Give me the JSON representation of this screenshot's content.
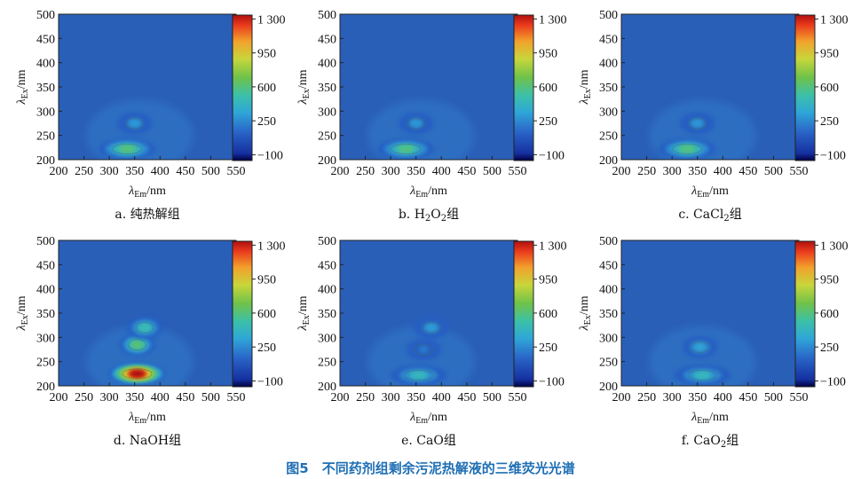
{
  "figure_title": "图5　不同药剂组剩余污泥热解液的三维荧光光谱",
  "chart_data": [
    {
      "type": "heatmap",
      "caption": "a. 纯热解组",
      "xlabel": "λEm/nm",
      "ylabel": "λEx/nm",
      "xlim": [
        200,
        550
      ],
      "ylim": [
        200,
        500
      ],
      "x_ticks": [
        200,
        250,
        300,
        350,
        400,
        450,
        500,
        550
      ],
      "y_ticks": [
        200,
        250,
        300,
        350,
        400,
        450,
        500
      ],
      "colorbar": {
        "ticks": [
          1300,
          950,
          600,
          250,
          -100
        ],
        "tick_labels": [
          "1 300",
          "950",
          "600",
          "250",
          "−100"
        ]
      },
      "peaks": [
        {
          "em": 335,
          "ex": 222,
          "intensity": 620
        },
        {
          "em": 350,
          "ex": 275,
          "intensity": 330
        }
      ]
    },
    {
      "type": "heatmap",
      "caption": "b. H2O2组",
      "xlabel": "λEm/nm",
      "ylabel": "λEx/nm",
      "xlim": [
        200,
        550
      ],
      "ylim": [
        200,
        500
      ],
      "x_ticks": [
        200,
        250,
        300,
        350,
        400,
        450,
        500,
        550
      ],
      "y_ticks": [
        200,
        250,
        300,
        350,
        400,
        450,
        500
      ],
      "colorbar": {
        "ticks": [
          1300,
          950,
          600,
          250,
          -100
        ],
        "tick_labels": [
          "1 300",
          "950",
          "600",
          "250",
          "−100"
        ]
      },
      "peaks": [
        {
          "em": 330,
          "ex": 222,
          "intensity": 600
        },
        {
          "em": 350,
          "ex": 275,
          "intensity": 320
        }
      ]
    },
    {
      "type": "heatmap",
      "caption": "c. CaCl2组",
      "xlabel": "λEm/nm",
      "ylabel": "λEx/nm",
      "xlim": [
        200,
        550
      ],
      "ylim": [
        200,
        500
      ],
      "x_ticks": [
        200,
        250,
        300,
        350,
        400,
        450,
        500,
        550
      ],
      "y_ticks": [
        200,
        250,
        300,
        350,
        400,
        450,
        500
      ],
      "colorbar": {
        "ticks": [
          1300,
          950,
          600,
          250,
          -100
        ],
        "tick_labels": [
          "1 300",
          "950",
          "600",
          "250",
          "−100"
        ]
      },
      "peaks": [
        {
          "em": 330,
          "ex": 222,
          "intensity": 610
        },
        {
          "em": 350,
          "ex": 275,
          "intensity": 320
        }
      ]
    },
    {
      "type": "heatmap",
      "caption": "d. NaOH组",
      "xlabel": "λEm/nm",
      "ylabel": "λEx/nm",
      "xlim": [
        200,
        550
      ],
      "ylim": [
        200,
        500
      ],
      "x_ticks": [
        200,
        250,
        300,
        350,
        400,
        450,
        500,
        550
      ],
      "y_ticks": [
        200,
        250,
        300,
        350,
        400,
        450,
        500
      ],
      "colorbar": {
        "ticks": [
          1300,
          950,
          600,
          250,
          -100
        ],
        "tick_labels": [
          "1 300",
          "950",
          "600",
          "250",
          "−100"
        ]
      },
      "peaks": [
        {
          "em": 355,
          "ex": 225,
          "intensity": 1300
        },
        {
          "em": 355,
          "ex": 285,
          "intensity": 640
        },
        {
          "em": 370,
          "ex": 320,
          "intensity": 520
        }
      ]
    },
    {
      "type": "heatmap",
      "caption": "e. CaO组",
      "xlabel": "λEm/nm",
      "ylabel": "λEx/nm",
      "xlim": [
        200,
        550
      ],
      "ylim": [
        200,
        500
      ],
      "x_ticks": [
        200,
        250,
        300,
        350,
        400,
        450,
        500,
        550
      ],
      "y_ticks": [
        200,
        250,
        300,
        350,
        400,
        450,
        500
      ],
      "colorbar": {
        "ticks": [
          1300,
          950,
          600,
          250,
          -100
        ],
        "tick_labels": [
          "1 300",
          "950",
          "600",
          "250",
          "−100"
        ]
      },
      "peaks": [
        {
          "em": 355,
          "ex": 222,
          "intensity": 470
        },
        {
          "em": 380,
          "ex": 320,
          "intensity": 340
        },
        {
          "em": 365,
          "ex": 275,
          "intensity": 250
        }
      ]
    },
    {
      "type": "heatmap",
      "caption": "f. CaO2组",
      "xlabel": "λEm/nm",
      "ylabel": "λEx/nm",
      "xlim": [
        200,
        550
      ],
      "ylim": [
        200,
        500
      ],
      "x_ticks": [
        200,
        250,
        300,
        350,
        400,
        450,
        500,
        550
      ],
      "y_ticks": [
        200,
        250,
        300,
        350,
        400,
        450,
        500
      ],
      "colorbar": {
        "ticks": [
          1300,
          950,
          600,
          250,
          -100
        ],
        "tick_labels": [
          "1 300",
          "950",
          "600",
          "250",
          "−100"
        ]
      },
      "peaks": [
        {
          "em": 360,
          "ex": 222,
          "intensity": 470
        },
        {
          "em": 355,
          "ex": 280,
          "intensity": 380
        }
      ]
    }
  ]
}
